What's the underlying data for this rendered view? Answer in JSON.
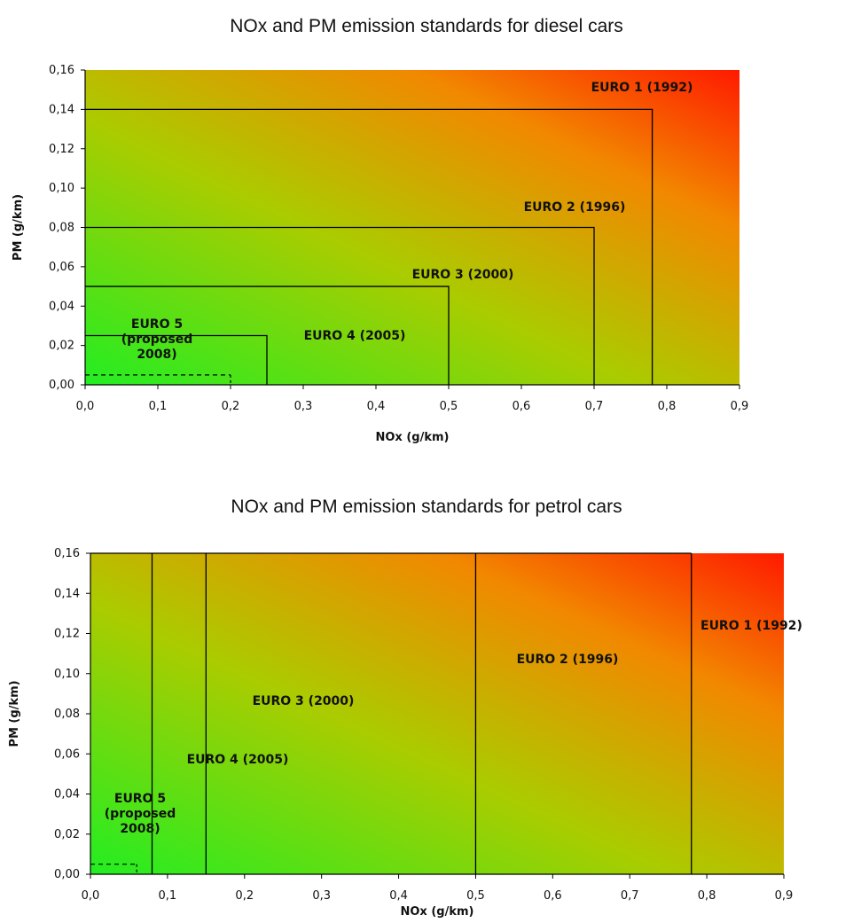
{
  "chart_data": [
    {
      "type": "area",
      "title": "NOx and PM emission standards for diesel cars",
      "xlabel": "NOx (g/km)",
      "ylabel": "PM (g/km)",
      "xlim": [
        0,
        0.9
      ],
      "ylim": [
        0,
        0.16
      ],
      "x_ticks": [
        "0,0",
        "0,1",
        "0,2",
        "0,3",
        "0,4",
        "0,5",
        "0,6",
        "0,7",
        "0,8",
        "0,9"
      ],
      "y_ticks": [
        "0,00",
        "0,02",
        "0,04",
        "0,06",
        "0,08",
        "0,10",
        "0,12",
        "0,14",
        "0,16"
      ],
      "background_gradient": {
        "low": "#22ee22",
        "mid": "#aacc00",
        "high": "#ff1a00"
      },
      "series": [
        {
          "label": "EURO 1 (1992)",
          "nox": 0.78,
          "pm": 0.14
        },
        {
          "label": "EURO 2 (1996)",
          "nox": 0.7,
          "pm": 0.08
        },
        {
          "label": "EURO 3 (2000)",
          "nox": 0.5,
          "pm": 0.05
        },
        {
          "label": "EURO 4 (2005)",
          "nox": 0.25,
          "pm": 0.025
        },
        {
          "label_lines": [
            "EURO 5",
            "(proposed",
            "2008)"
          ],
          "nox": 0.2,
          "pm": 0.005,
          "dashed": true
        }
      ]
    },
    {
      "type": "area",
      "title": "NOx and PM emission standards for petrol cars",
      "xlabel": "NOx (g/km)",
      "ylabel": "PM (g/km)",
      "xlim": [
        0,
        0.9
      ],
      "ylim": [
        0,
        0.16
      ],
      "x_ticks": [
        "0,0",
        "0,1",
        "0,2",
        "0,3",
        "0,4",
        "0,5",
        "0,6",
        "0,7",
        "0,8",
        "0,9"
      ],
      "y_ticks": [
        "0,00",
        "0,02",
        "0,04",
        "0,06",
        "0,08",
        "0,10",
        "0,12",
        "0,14",
        "0,16"
      ],
      "background_gradient": {
        "low": "#22ee22",
        "mid": "#aacc00",
        "high": "#ff1a00"
      },
      "series": [
        {
          "label": "EURO 1 (1992)",
          "nox": 0.78
        },
        {
          "label": "EURO 2 (1996)",
          "nox": 0.5
        },
        {
          "label": "EURO 3 (2000)",
          "nox": 0.15
        },
        {
          "label": "EURO 4 (2005)",
          "nox": 0.08
        },
        {
          "label_lines": [
            "EURO 5",
            "(proposed",
            "2008)"
          ],
          "nox": 0.06,
          "pm": 0.005,
          "dashed": true
        }
      ]
    }
  ]
}
